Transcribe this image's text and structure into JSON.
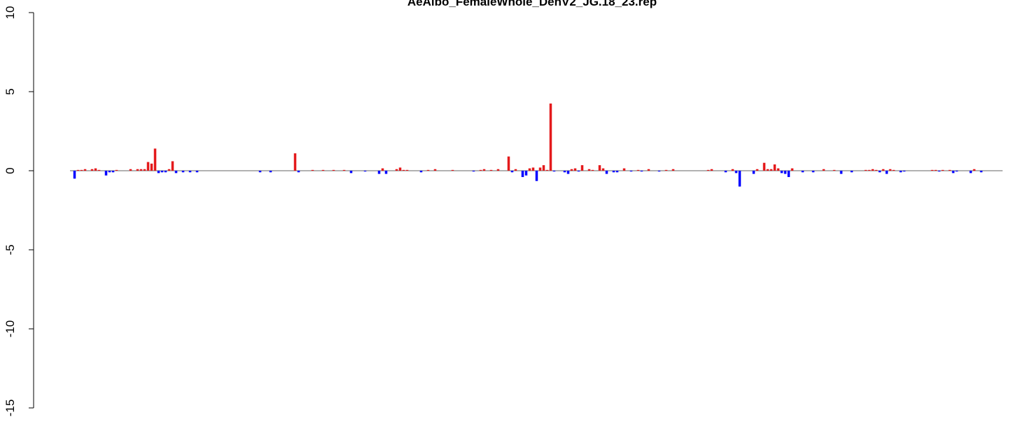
{
  "chart_data": {
    "type": "bar",
    "title": "AeAlbo_FemaleWhole_DenV2_JG.18_23.rep",
    "values": [
      -0.5,
      0.05,
      0.05,
      0.1,
      0,
      0.1,
      0.15,
      0.05,
      0,
      -0.3,
      -0.1,
      -0.1,
      0.05,
      0,
      0,
      0,
      0.1,
      0,
      0.1,
      0.1,
      0.1,
      0.55,
      0.45,
      1.4,
      -0.15,
      -0.1,
      -0.1,
      0.1,
      0.6,
      -0.15,
      0,
      -0.1,
      0,
      -0.1,
      0,
      -0.1,
      0,
      0,
      0,
      0,
      0,
      0,
      0,
      0,
      0,
      0,
      0,
      0,
      0,
      0,
      0,
      0,
      0,
      -0.1,
      0,
      0,
      -0.1,
      0,
      0,
      0,
      0,
      0,
      0,
      1.1,
      -0.1,
      0,
      0,
      0,
      0.05,
      0,
      0,
      0.05,
      0,
      0,
      0.05,
      0,
      0,
      0.05,
      0,
      -0.15,
      0,
      0,
      0,
      -0.05,
      0,
      0,
      0,
      -0.2,
      0.15,
      -0.2,
      0,
      0,
      0.1,
      0.2,
      0.05,
      0.05,
      0,
      0,
      0,
      -0.1,
      0,
      0.05,
      0,
      0.1,
      0,
      0,
      0,
      0,
      0.05,
      0,
      0,
      0,
      0,
      0,
      -0.05,
      0,
      0.05,
      0.1,
      0,
      0.05,
      0,
      0.1,
      0,
      0,
      0.9,
      -0.1,
      0.1,
      0,
      -0.4,
      -0.3,
      0.15,
      0.2,
      -0.65,
      0.2,
      0.35,
      0.05,
      4.25,
      -0.05,
      0,
      0,
      -0.1,
      -0.2,
      0.1,
      0.15,
      -0.05,
      0.35,
      0,
      0.1,
      0.05,
      0,
      0.35,
      0.15,
      -0.2,
      0,
      -0.1,
      -0.1,
      0,
      0.15,
      0,
      -0.05,
      0,
      0.05,
      -0.05,
      0,
      0.1,
      0,
      0,
      -0.05,
      0,
      0.05,
      0,
      0.1,
      0,
      0,
      0,
      0,
      0,
      0,
      0,
      0,
      0,
      0.05,
      0.1,
      0,
      0,
      0,
      -0.1,
      0,
      0.1,
      -0.15,
      -1.0,
      0,
      0,
      0,
      -0.2,
      0.1,
      0,
      0.5,
      0.1,
      0.1,
      0.4,
      0.15,
      -0.15,
      -0.2,
      -0.4,
      0.15,
      0,
      0,
      -0.1,
      0,
      0,
      -0.1,
      0,
      0,
      0.1,
      0,
      0,
      0.05,
      0,
      -0.2,
      0,
      0,
      -0.1,
      0,
      0,
      0,
      0.05,
      0.05,
      0.1,
      0.05,
      -0.1,
      0.1,
      -0.2,
      0.1,
      0.05,
      0,
      -0.1,
      -0.05,
      0,
      0,
      0,
      0,
      0,
      0,
      0,
      0.05,
      0.05,
      -0.05,
      0.05,
      0,
      0.05,
      -0.15,
      -0.05,
      0,
      0,
      0,
      -0.15,
      0.1,
      0,
      -0.1
    ],
    "positive_color": "#e41a1c",
    "negative_color": "#0000ff",
    "ylim": [
      -15,
      10
    ],
    "yticks": [
      -15,
      -10,
      -5,
      0,
      5,
      10
    ]
  }
}
